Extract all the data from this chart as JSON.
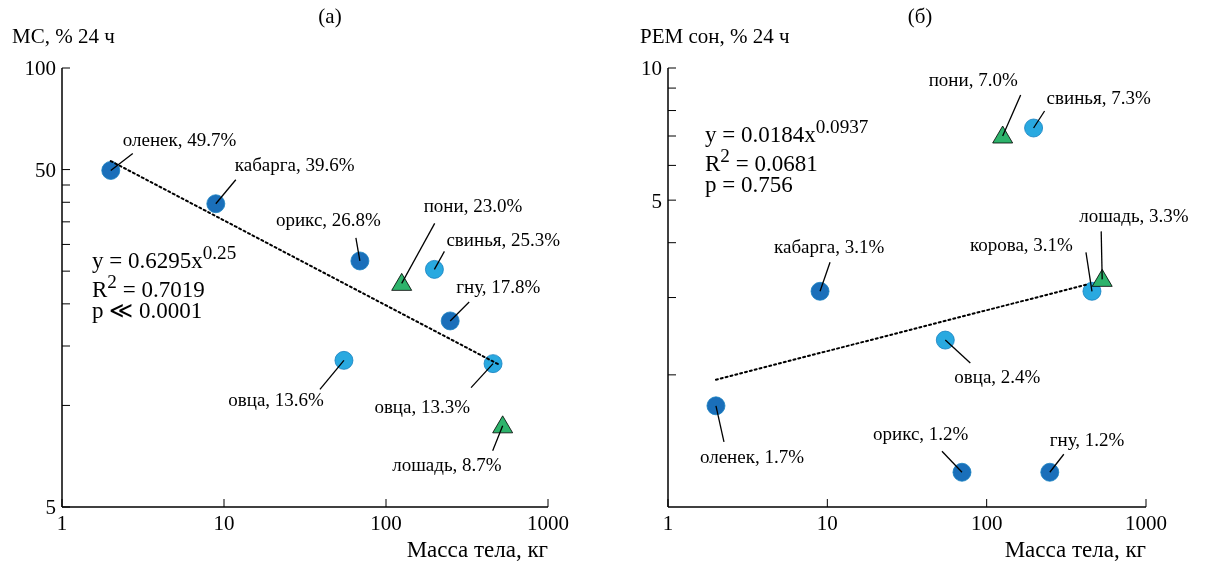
{
  "chart_data": [
    {
      "type": "scatter",
      "title": "(а)",
      "xlabel": "Масса тела, кг",
      "ylabel": "МС, % 24 ч",
      "log": "xy",
      "grid": false,
      "legend": false,
      "xlim": [
        1,
        1000
      ],
      "xticks": [
        1,
        10,
        100,
        1000
      ],
      "ylim": [
        5,
        100
      ],
      "yticks": [
        5,
        {
          "value": 10,
          "label": null
        },
        {
          "value": 15,
          "label": null
        },
        {
          "value": 20,
          "label": null
        },
        {
          "value": 25,
          "label": null
        },
        {
          "value": 30,
          "label": null
        },
        {
          "value": 35,
          "label": null
        },
        {
          "value": 40,
          "label": null
        },
        {
          "value": 45,
          "label": null
        },
        50,
        100
      ],
      "series": [
        {
          "type": "scatter",
          "marker": "circle",
          "color": "#1a6fba",
          "x": [
            2.0,
            8.9,
            69,
            249
          ],
          "values": [
            49.7,
            39.6,
            26.8,
            17.8
          ]
        },
        {
          "type": "scatter",
          "marker": "circle",
          "color": "#29a9e0",
          "x": [
            199,
            55,
            458
          ],
          "values": [
            25.3,
            13.6,
            13.3
          ]
        },
        {
          "type": "scatter",
          "marker": "triangle",
          "color": "#2db36b",
          "x": [
            125,
            525
          ],
          "values": [
            23.0,
            8.7
          ]
        },
        {
          "type": "line",
          "line_style": "dotted",
          "color": "#000000",
          "x": [
            2.0,
            500
          ],
          "values": [
            53,
            13.2
          ]
        }
      ],
      "annotations": [
        {
          "text": "оленек, 49.7%",
          "x": 2.0,
          "y": 49.7
        },
        {
          "text": "кабарга, 39.6%",
          "x": 8.9,
          "y": 39.6
        },
        {
          "text": "орикс, 26.8%",
          "x": 69,
          "y": 26.8
        },
        {
          "text": "пони, 23.0%",
          "x": 125,
          "y": 23.0
        },
        {
          "text": "свинья, 25.3%",
          "x": 199,
          "y": 25.3
        },
        {
          "text": "гну, 17.8%",
          "x": 249,
          "y": 17.8
        },
        {
          "text": "овца, 13.6%",
          "x": 55,
          "y": 13.6
        },
        {
          "text": "овца, 13.3%",
          "x": 458,
          "y": 13.3
        },
        {
          "text": "лошадь, 8.7%",
          "x": 525,
          "y": 8.7
        },
        "y = 0.6295x$^{0.25}$",
        "R$^{2}$ = 0.7019",
        "p ≪ 0.0001"
      ]
    },
    {
      "type": "scatter",
      "title": "(б)",
      "xlabel": "Масса тела, кг",
      "ylabel": "РЕМ сон, % 24 ч",
      "log": "xy",
      "grid": false,
      "legend": false,
      "xlim": [
        1,
        1000
      ],
      "xticks": [
        1,
        10,
        100,
        1000
      ],
      "ylim": [
        1,
        10
      ],
      "yticks": [
        {
          "value": 2,
          "label": null
        },
        {
          "value": 3,
          "label": null
        },
        {
          "value": 4,
          "label": null
        },
        5,
        {
          "value": 6,
          "label": null
        },
        {
          "value": 7,
          "label": null
        },
        {
          "value": 8,
          "label": null
        },
        {
          "value": 9,
          "label": null
        },
        10
      ],
      "series": [
        {
          "type": "scatter",
          "marker": "circle",
          "color": "#1a6fba",
          "x": [
            2.0,
            9.0,
            70,
            249
          ],
          "values": [
            1.7,
            3.1,
            1.2,
            1.2
          ]
        },
        {
          "type": "scatter",
          "marker": "circle",
          "color": "#29a9e0",
          "x": [
            55,
            197,
            458
          ],
          "values": [
            2.4,
            7.3,
            3.1
          ]
        },
        {
          "type": "scatter",
          "marker": "triangle",
          "color": "#2db36b",
          "x": [
            126,
            531
          ],
          "values": [
            7.0,
            3.3
          ]
        },
        {
          "type": "line",
          "line_style": "dotted",
          "color": "#000000",
          "x": [
            2.0,
            437
          ],
          "values": [
            1.95,
            3.22
          ]
        }
      ],
      "annotations": [
        {
          "text": "оленек, 1.7%",
          "x": 2.0,
          "y": 1.7
        },
        {
          "text": "кабарга, 3.1%",
          "x": 9.0,
          "y": 3.1
        },
        {
          "text": "орикс, 1.2%",
          "x": 70,
          "y": 1.2
        },
        {
          "text": "овца, 2.4%",
          "x": 55,
          "y": 2.4
        },
        {
          "text": "свинья, 7.3%",
          "x": 197,
          "y": 7.3
        },
        {
          "text": "пони, 7.0%",
          "x": 126,
          "y": 7.0
        },
        {
          "text": "корова, 3.1%",
          "x": 458,
          "y": 3.1
        },
        {
          "text": "лошадь, 3.3%",
          "x": 531,
          "y": 3.3
        },
        {
          "text": "гну, 1.2%",
          "x": 249,
          "y": 1.2
        },
        "y = 0.0184x$^{0.0937}$",
        "R$^{2}$ = 0.0681",
        "p = 0.756"
      ]
    }
  ]
}
